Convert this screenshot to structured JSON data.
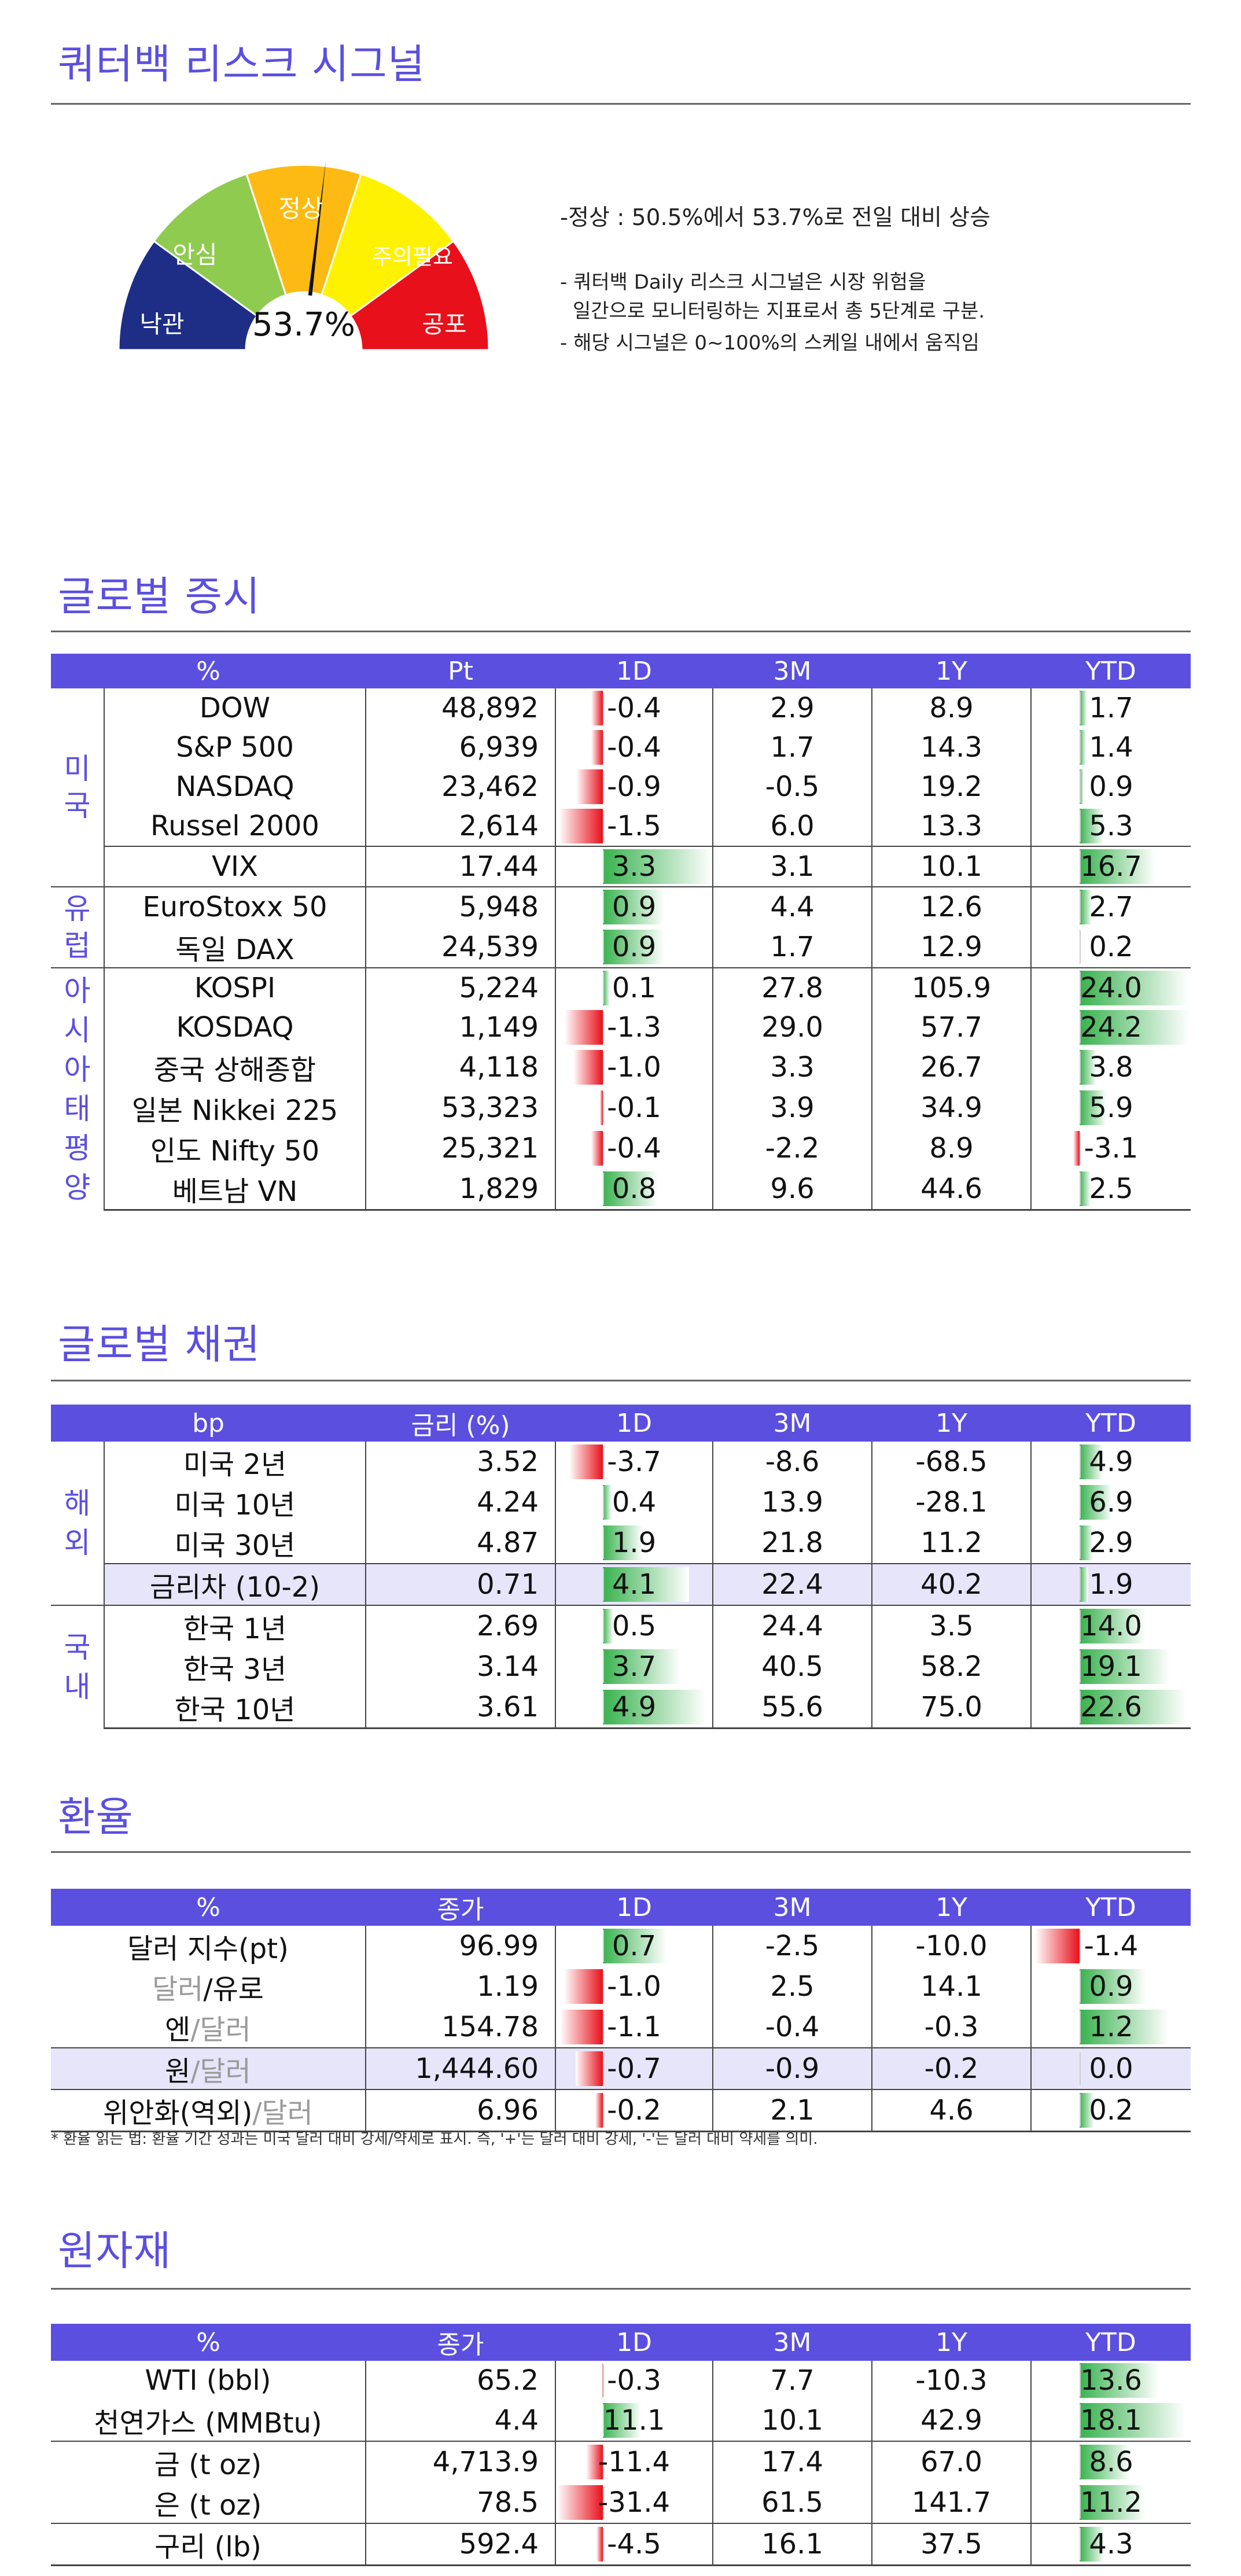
{
  "risk": {
    "title": "쿼터백 리스크 시그널",
    "value_text": "53.7%",
    "value": 53.7,
    "labels": [
      "낙관",
      "안심",
      "정상",
      "주의필요",
      "공포"
    ],
    "headline": "-정상 : 50.5%에서 53.7%로 전일 대비 상승",
    "desc_line1": "- 쿼터백 Daily 리스크 시그널은 시장 위험을",
    "desc_line2": "일간으로 모니터링하는 지표로서 총 5단계로 구분.",
    "desc_line3": "- 해당 시그널은 0~100%의 스케일 내에서 움직임"
  },
  "colors": {
    "accent": "#5B4FE0",
    "gauge": [
      "#1E2E86",
      "#8FCB4E",
      "#FDBA12",
      "#FFF200",
      "#E8101A"
    ],
    "pos": "#38B24E",
    "neg": "#E8101A"
  },
  "equity": {
    "title": "글로벌 증시",
    "headers": [
      "%",
      "Pt",
      "1D",
      "3M",
      "1Y",
      "YTD"
    ],
    "groups": [
      "미\n국",
      "유\n럽",
      "아\n시\n아\n태\n평\n양"
    ],
    "rows": [
      {
        "name": "DOW",
        "pt": "48,892",
        "d1": "-0.4",
        "m3": "2.9",
        "y1": "8.9",
        "ytd": "1.7"
      },
      {
        "name": "S&P 500",
        "pt": "6,939",
        "d1": "-0.4",
        "m3": "1.7",
        "y1": "14.3",
        "ytd": "1.4"
      },
      {
        "name": "NASDAQ",
        "pt": "23,462",
        "d1": "-0.9",
        "m3": "-0.5",
        "y1": "19.2",
        "ytd": "0.9"
      },
      {
        "name": "Russel 2000",
        "pt": "2,614",
        "d1": "-1.5",
        "m3": "6.0",
        "y1": "13.3",
        "ytd": "5.3"
      },
      {
        "name": "VIX",
        "pt": "17.44",
        "d1": "3.3",
        "m3": "3.1",
        "y1": "10.1",
        "ytd": "16.7"
      },
      {
        "name": "EuroStoxx 50",
        "pt": "5,948",
        "d1": "0.9",
        "m3": "4.4",
        "y1": "12.6",
        "ytd": "2.7"
      },
      {
        "name": "독일 DAX",
        "pt": "24,539",
        "d1": "0.9",
        "m3": "1.7",
        "y1": "12.9",
        "ytd": "0.2"
      },
      {
        "name": "KOSPI",
        "pt": "5,224",
        "d1": "0.1",
        "m3": "27.8",
        "y1": "105.9",
        "ytd": "24.0"
      },
      {
        "name": "KOSDAQ",
        "pt": "1,149",
        "d1": "-1.3",
        "m3": "29.0",
        "y1": "57.7",
        "ytd": "24.2"
      },
      {
        "name": "중국 상해종합",
        "pt": "4,118",
        "d1": "-1.0",
        "m3": "3.3",
        "y1": "26.7",
        "ytd": "3.8"
      },
      {
        "name": "일본 Nikkei 225",
        "pt": "53,323",
        "d1": "-0.1",
        "m3": "3.9",
        "y1": "34.9",
        "ytd": "5.9"
      },
      {
        "name": "인도 Nifty 50",
        "pt": "25,321",
        "d1": "-0.4",
        "m3": "-2.2",
        "y1": "8.9",
        "ytd": "-3.1"
      },
      {
        "name": "베트남 VN",
        "pt": "1,829",
        "d1": "0.8",
        "m3": "9.6",
        "y1": "44.6",
        "ytd": "2.5"
      }
    ]
  },
  "bonds": {
    "title": "글로벌 채권",
    "headers": [
      "bp",
      "금리 (%)",
      "1D",
      "3M",
      "1Y",
      "YTD"
    ],
    "groups": [
      "해\n외",
      "국\n내"
    ],
    "rows": [
      {
        "name": "미국 2년",
        "pt": "3.52",
        "d1": "-3.7",
        "m3": "-8.6",
        "y1": "-68.5",
        "ytd": "4.9"
      },
      {
        "name": "미국 10년",
        "pt": "4.24",
        "d1": "0.4",
        "m3": "13.9",
        "y1": "-28.1",
        "ytd": "6.9"
      },
      {
        "name": "미국 30년",
        "pt": "4.87",
        "d1": "1.9",
        "m3": "21.8",
        "y1": "11.2",
        "ytd": "2.9"
      },
      {
        "name": "금리차 (10-2)",
        "pt": "0.71",
        "d1": "4.1",
        "m3": "22.4",
        "y1": "40.2",
        "ytd": "1.9"
      },
      {
        "name": "한국 1년",
        "pt": "2.69",
        "d1": "0.5",
        "m3": "24.4",
        "y1": "3.5",
        "ytd": "14.0"
      },
      {
        "name": "한국 3년",
        "pt": "3.14",
        "d1": "3.7",
        "m3": "40.5",
        "y1": "58.2",
        "ytd": "19.1"
      },
      {
        "name": "한국 10년",
        "pt": "3.61",
        "d1": "4.9",
        "m3": "55.6",
        "y1": "75.0",
        "ytd": "22.6"
      }
    ]
  },
  "fx": {
    "title": "환율",
    "headers": [
      "%",
      "종가",
      "1D",
      "3M",
      "1Y",
      "YTD"
    ],
    "rows": [
      {
        "name_a": "달러 지수(pt)",
        "name_b": "",
        "pt": "96.99",
        "d1": "0.7",
        "m3": "-2.5",
        "y1": "-10.0",
        "ytd": "-1.4"
      },
      {
        "name_a": "달러",
        "name_b": "/유로",
        "pt": "1.19",
        "d1": "-1.0",
        "m3": "2.5",
        "y1": "14.1",
        "ytd": "0.9"
      },
      {
        "name_a": "엔",
        "name_b": "/달러",
        "pt": "154.78",
        "d1": "-1.1",
        "m3": "-0.4",
        "y1": "-0.3",
        "ytd": "1.2"
      },
      {
        "name_a": "원",
        "name_b": "/달러",
        "pt": "1,444.60",
        "d1": "-0.7",
        "m3": "-0.9",
        "y1": "-0.2",
        "ytd": "0.0"
      },
      {
        "name_a": "위안화(역외)",
        "name_b": "/달러",
        "pt": "6.96",
        "d1": "-0.2",
        "m3": "2.1",
        "y1": "4.6",
        "ytd": "0.2"
      }
    ],
    "footnote": "* 환율 읽는 법: 환율 기간 성과는 미국 달러 대비 강세/약세로 표시. 즉, '+'는 달러 대비 강세, '-'는 달러 대비 약세를 의미."
  },
  "commodities": {
    "title": "원자재",
    "headers": [
      "%",
      "종가",
      "1D",
      "3M",
      "1Y",
      "YTD"
    ],
    "rows": [
      {
        "name": "WTI (bbl)",
        "pt": "65.2",
        "d1": "-0.3",
        "m3": "7.7",
        "y1": "-10.3",
        "ytd": "13.6"
      },
      {
        "name": "천연가스 (MMBtu)",
        "pt": "4.4",
        "d1": "11.1",
        "m3": "10.1",
        "y1": "42.9",
        "ytd": "18.1"
      },
      {
        "name": "금 (t oz)",
        "pt": "4,713.9",
        "d1": "-11.4",
        "m3": "17.4",
        "y1": "67.0",
        "ytd": "8.6"
      },
      {
        "name": "은 (t oz)",
        "pt": "78.5",
        "d1": "-31.4",
        "m3": "61.5",
        "y1": "141.7",
        "ytd": "11.2"
      },
      {
        "name": "구리 (lb)",
        "pt": "592.4",
        "d1": "-4.5",
        "m3": "16.1",
        "y1": "37.5",
        "ytd": "4.3"
      }
    ]
  }
}
